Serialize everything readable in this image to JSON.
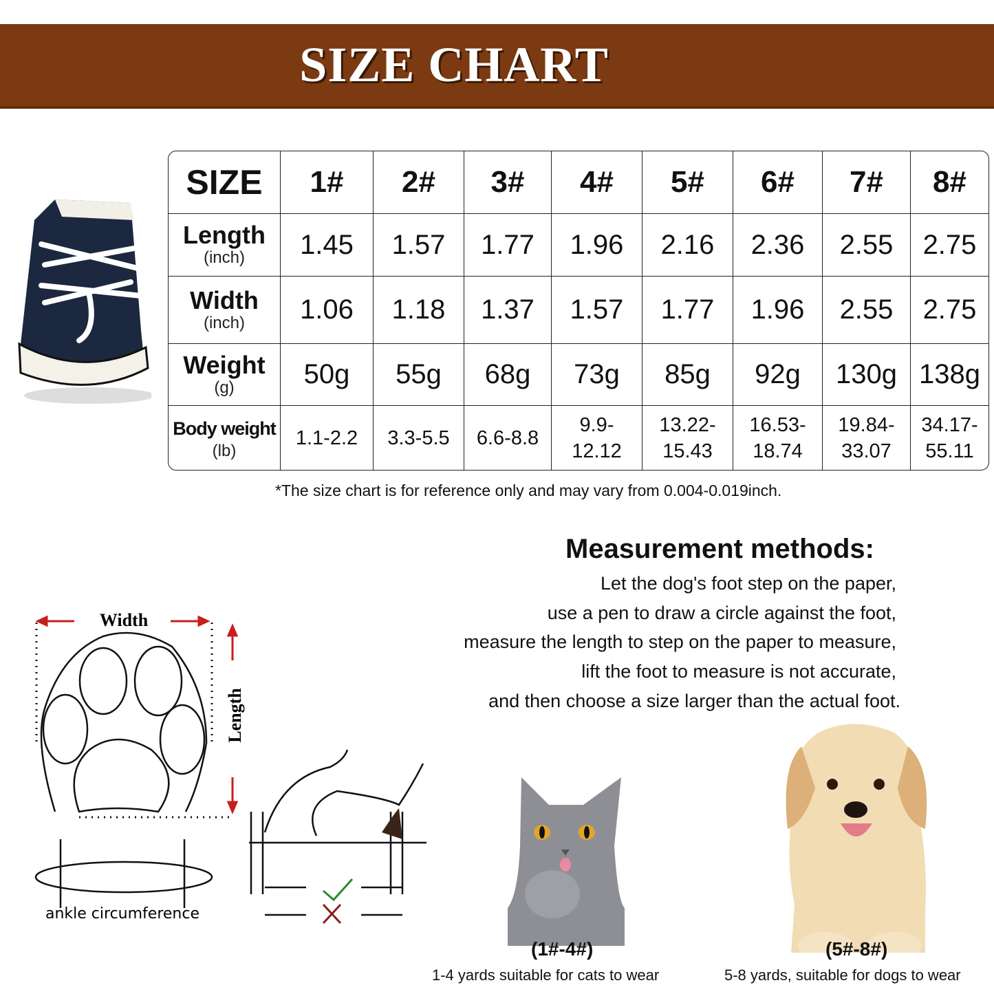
{
  "title": "SIZE CHART",
  "table": {
    "header_label": "SIZE",
    "sizes": [
      "1#",
      "2#",
      "3#",
      "4#",
      "5#",
      "6#",
      "7#",
      "8#"
    ],
    "rows": [
      {
        "label": "Length",
        "unit": "(inch)",
        "values": [
          "1.45",
          "1.57",
          "1.77",
          "1.96",
          "2.16",
          "2.36",
          "2.55",
          "2.75"
        ]
      },
      {
        "label": "Width",
        "unit": "(inch)",
        "values": [
          "1.06",
          "1.18",
          "1.37",
          "1.57",
          "1.77",
          "1.96",
          "2.55",
          "2.75"
        ]
      },
      {
        "label": "Weight",
        "unit": "(g)",
        "values": [
          "50g",
          "55g",
          "68g",
          "73g",
          "85g",
          "92g",
          "130g",
          "138g"
        ]
      },
      {
        "label": "Body weight",
        "unit": "(lb)",
        "values": [
          [
            "1.1-2.2"
          ],
          [
            "3.3-5.5"
          ],
          [
            "6.6-8.8"
          ],
          [
            "9.9-",
            "12.12"
          ],
          [
            "13.22-",
            "15.43"
          ],
          [
            "16.53-",
            "18.74"
          ],
          [
            "19.84-",
            "33.07"
          ],
          [
            "34.17-",
            "55.11"
          ]
        ]
      }
    ]
  },
  "note": "*The size chart is for reference only and may vary from 0.004-0.019inch.",
  "measurement": {
    "heading": "Measurement methods:",
    "lines": [
      "Let the dog's foot step on the paper,",
      "use a pen to draw a circle against the foot,",
      "measure the length to step on the paper to measure,",
      "lift the foot to measure is not accurate,",
      "and then choose a size larger than the actual foot."
    ]
  },
  "diagram": {
    "width_label": "Width",
    "length_label": "Length",
    "ankle_label": "ankle circumference",
    "accent": "#c81e1e"
  },
  "cat": {
    "range": "(1#-4#)",
    "caption": "1-4 yards suitable for cats to wear"
  },
  "dog": {
    "range": "(5#-8#)",
    "caption": "5-8 yards, suitable for dogs to wear"
  },
  "colors": {
    "banner": "#7b3a12",
    "shoe": "#1c2740"
  }
}
